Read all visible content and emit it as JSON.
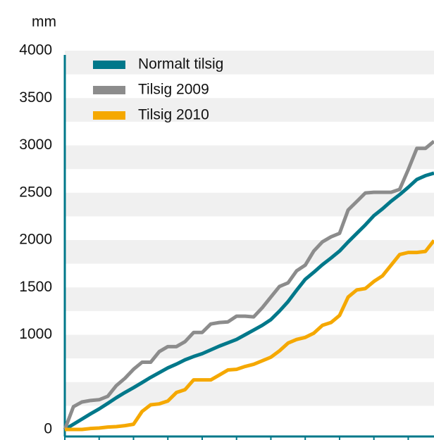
{
  "chart_data": {
    "type": "line",
    "y_label": "mm",
    "x": [
      0,
      1,
      2,
      3,
      4,
      5,
      6,
      7,
      8,
      9,
      10,
      11,
      12,
      13,
      14,
      15,
      16,
      17,
      18,
      19,
      20,
      21,
      22,
      23,
      24,
      25,
      26,
      27,
      28,
      29,
      30,
      31,
      32,
      33,
      34,
      35,
      36,
      37,
      38,
      39,
      40,
      41,
      42,
      43
    ],
    "xlim": [
      0,
      43
    ],
    "xticks": [
      0,
      4,
      8,
      12,
      16,
      20,
      24,
      28,
      32,
      36,
      40
    ],
    "ylim": [
      0,
      4000
    ],
    "yticks": [
      0,
      1000,
      1500,
      2000,
      2500,
      3000,
      3500,
      4000
    ],
    "legend": "top-left",
    "series": [
      {
        "name": "Normalt tilsig",
        "color": "#00788a",
        "values": [
          0,
          55,
          110,
          165,
          217,
          275,
          335,
          390,
          441,
          495,
          550,
          600,
          650,
          690,
          735,
          770,
          800,
          840,
          880,
          915,
          950,
          1000,
          1050,
          1100,
          1160,
          1250,
          1350,
          1470,
          1585,
          1660,
          1740,
          1810,
          1884,
          1980,
          2070,
          2160,
          2258,
          2330,
          2410,
          2480,
          2557,
          2640,
          2680,
          2707
        ]
      },
      {
        "name": "Tilsig 2009",
        "color": "#8c8c8c",
        "values": [
          0,
          240,
          290,
          306,
          314,
          350,
          463,
          540,
          635,
          710,
          710,
          822,
          875,
          875,
          927,
          1024,
          1024,
          1114,
          1129,
          1136,
          1196,
          1196,
          1189,
          1286,
          1398,
          1510,
          1548,
          1675,
          1735,
          1884,
          1981,
          2034,
          2071,
          2318,
          2407,
          2497,
          2505,
          2505,
          2505,
          2535,
          2744,
          2968,
          2968,
          3043
        ]
      },
      {
        "name": "Tilsig 2010",
        "color": "#f5a800",
        "values": [
          0,
          0,
          0,
          10,
          15,
          25,
          30,
          40,
          55,
          190,
          260,
          270,
          300,
          390,
          420,
          523,
          523,
          523,
          575,
          628,
          635,
          665,
          688,
          725,
          763,
          830,
          912,
          950,
          972,
          1017,
          1099,
          1129,
          1204,
          1398,
          1473,
          1488,
          1563,
          1622,
          1735,
          1847,
          1869,
          1869,
          1880,
          1996
        ]
      }
    ]
  }
}
